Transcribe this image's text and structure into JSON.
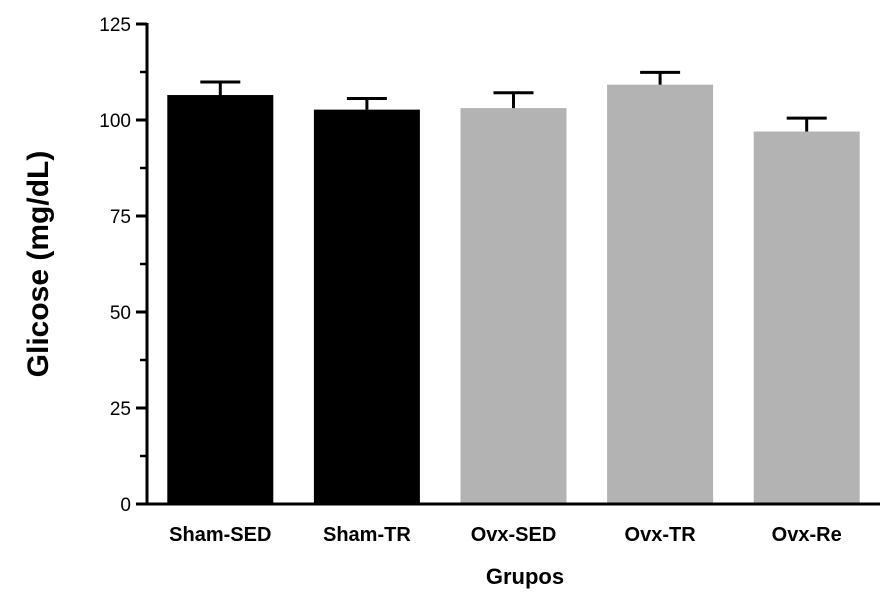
{
  "chart_data": {
    "type": "bar",
    "title": "",
    "xlabel": "Grupos",
    "ylabel": "Glicose (mg/dL)",
    "categories": [
      "Sham-SED",
      "Sham-TR",
      "Ovx-SED",
      "Ovx-TR",
      "Ovx-Re"
    ],
    "values": [
      106.5,
      102.7,
      103.1,
      109.2,
      97.0
    ],
    "errors": [
      3.4,
      2.9,
      4.0,
      3.2,
      3.5
    ],
    "bar_colors": [
      "#000000",
      "#000000",
      "#b3b3b3",
      "#b3b3b3",
      "#b3b3b3"
    ],
    "error_bar_color": "#000000",
    "ylim": [
      0,
      125
    ],
    "y_ticks": [
      "0",
      "25",
      "50",
      "75",
      "100",
      "125"
    ],
    "y_tick_values": [
      0,
      25,
      50,
      75,
      100,
      125
    ],
    "y_minor_step": 12.5,
    "grid": false,
    "legend": "none"
  }
}
